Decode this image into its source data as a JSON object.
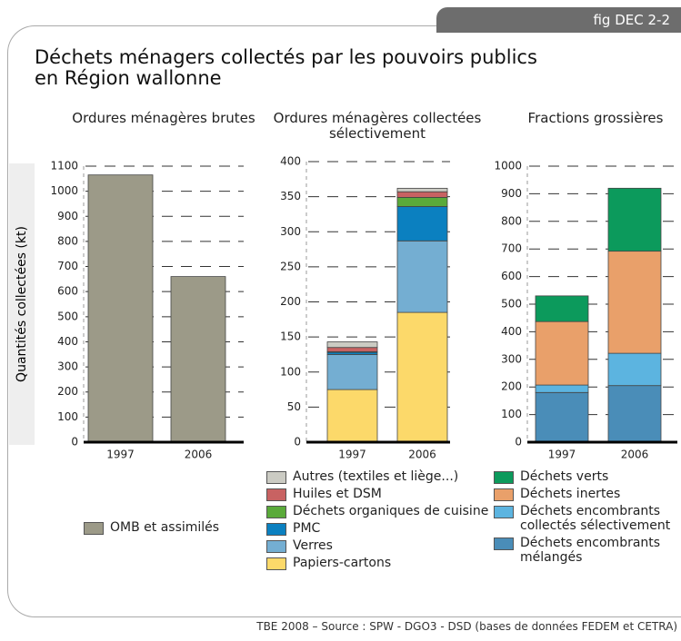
{
  "fig_label": "fig DEC 2-2",
  "title": "Déchets ménagers collectés par les pouvoirs publics en Région wallonne",
  "y_axis_label": "Quantités collectées (kt)",
  "source": "TBE 2008 – Source : SPW - DGO3 - DSD (bases de données FEDEM et CETRA)",
  "chart_data": [
    {
      "type": "bar",
      "title": "Ordures ménagères brutes",
      "categories": [
        "1997",
        "2006"
      ],
      "series": [
        {
          "name": "OMB et assimilés",
          "color": "#9c9a88",
          "values": [
            1065,
            660
          ]
        }
      ],
      "ylim": [
        0,
        1100
      ],
      "yticks": [
        0,
        100,
        200,
        300,
        400,
        500,
        600,
        700,
        800,
        900,
        1000,
        1100
      ],
      "grid": true
    },
    {
      "type": "stacked_bar",
      "title": "Ordures ménagères collectées sélectivement",
      "categories": [
        "1997",
        "2006"
      ],
      "series": [
        {
          "name": "Papiers-cartons",
          "color": "#fcd96a",
          "values": [
            75,
            185
          ]
        },
        {
          "name": "Verres",
          "color": "#74aed2",
          "values": [
            50,
            102
          ]
        },
        {
          "name": "PMC",
          "color": "#0b80c0",
          "values": [
            3,
            49
          ]
        },
        {
          "name": "Déchets organiques de cuisine",
          "color": "#5aaa3a",
          "values": [
            1,
            13
          ]
        },
        {
          "name": "Huiles et DSM",
          "color": "#c86262",
          "values": [
            6,
            8
          ]
        },
        {
          "name": "Autres (textiles et liège...)",
          "color": "#cbcbc3",
          "values": [
            8,
            5
          ]
        }
      ],
      "ylim": [
        0,
        400
      ],
      "yticks": [
        0,
        50,
        100,
        150,
        200,
        250,
        300,
        350,
        400
      ],
      "grid": true
    },
    {
      "type": "stacked_bar",
      "title": "Fractions grossières",
      "categories": [
        "1997",
        "2006"
      ],
      "series": [
        {
          "name": "Déchets encombrants mélangés",
          "color": "#4a8db8",
          "values": [
            180,
            205
          ]
        },
        {
          "name": "Déchets encombrants collectés sélectivement",
          "color": "#5cb4e0",
          "values": [
            27,
            117
          ]
        },
        {
          "name": "Déchets inertes",
          "color": "#e9a06a",
          "values": [
            230,
            370
          ]
        },
        {
          "name": "Déchets verts",
          "color": "#0c9a5c",
          "values": [
            93,
            228
          ]
        }
      ],
      "ylim": [
        0,
        1000
      ],
      "yticks": [
        0,
        100,
        200,
        300,
        400,
        500,
        600,
        700,
        800,
        900,
        1000
      ],
      "grid": true
    }
  ]
}
